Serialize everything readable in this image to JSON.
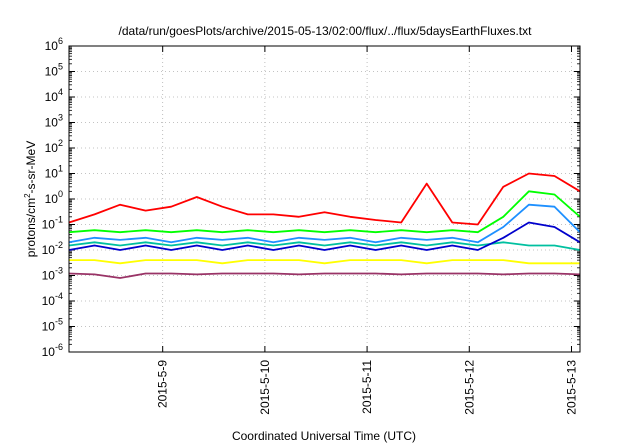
{
  "chart_data": {
    "type": "line",
    "title": "/data/run/goesPlots/archive/2015-05-13/02:00/flux/../flux/5daysEarthFluxes.txt",
    "xlabel": "Coordinated Universal Time (UTC)",
    "ylabel_main": "protons/cm",
    "ylabel_sup": "2",
    "ylabel_tail": "-s-sr-MeV",
    "x_axis": {
      "range": [
        "2015-05-08 02:00",
        "2015-05-13 02:00"
      ],
      "ticks": [
        "2015-5-9",
        "2015-5-10",
        "2015-5-11",
        "2015-5-12",
        "2015-5-13"
      ]
    },
    "y_axis": {
      "scale": "log",
      "range": [
        1e-06,
        1000000.0
      ],
      "ticks": [
        {
          "base": "10",
          "exp": "-6"
        },
        {
          "base": "10",
          "exp": "-5"
        },
        {
          "base": "10",
          "exp": "-4"
        },
        {
          "base": "10",
          "exp": "-3"
        },
        {
          "base": "10",
          "exp": "-2"
        },
        {
          "base": "10",
          "exp": "-1"
        },
        {
          "base": "10",
          "exp": "0"
        },
        {
          "base": "10",
          "exp": "1"
        },
        {
          "base": "10",
          "exp": "2"
        },
        {
          "base": "10",
          "exp": "3"
        },
        {
          "base": "10",
          "exp": "4"
        },
        {
          "base": "10",
          "exp": "5"
        },
        {
          "base": "10",
          "exp": "6"
        }
      ]
    },
    "grid": true,
    "x": [
      "2015-05-08 02:00",
      "2015-05-08 08:00",
      "2015-05-08 14:00",
      "2015-05-08 20:00",
      "2015-05-09 02:00",
      "2015-05-09 08:00",
      "2015-05-09 14:00",
      "2015-05-09 20:00",
      "2015-05-10 02:00",
      "2015-05-10 08:00",
      "2015-05-10 14:00",
      "2015-05-10 20:00",
      "2015-05-11 02:00",
      "2015-05-11 08:00",
      "2015-05-11 14:00",
      "2015-05-11 20:00",
      "2015-05-12 02:00",
      "2015-05-12 08:00",
      "2015-05-12 14:00",
      "2015-05-12 20:00",
      "2015-05-13 02:00"
    ],
    "series": [
      {
        "color": "#ff0000",
        "values": [
          0.12,
          0.25,
          0.6,
          0.35,
          0.5,
          1.2,
          0.5,
          0.25,
          0.25,
          0.2,
          0.3,
          0.2,
          0.15,
          0.12,
          4,
          0.12,
          0.1,
          3,
          10,
          8,
          2
        ]
      },
      {
        "color": "#00ff00",
        "values": [
          0.05,
          0.06,
          0.05,
          0.06,
          0.05,
          0.06,
          0.05,
          0.06,
          0.05,
          0.06,
          0.05,
          0.06,
          0.05,
          0.06,
          0.05,
          0.06,
          0.05,
          0.2,
          2,
          1.5,
          0.2
        ]
      },
      {
        "color": "#1e90ff",
        "values": [
          0.02,
          0.03,
          0.025,
          0.03,
          0.02,
          0.03,
          0.025,
          0.03,
          0.02,
          0.03,
          0.025,
          0.03,
          0.02,
          0.03,
          0.025,
          0.03,
          0.02,
          0.08,
          0.6,
          0.5,
          0.05
        ]
      },
      {
        "color": "#00c0a0",
        "values": [
          0.015,
          0.02,
          0.015,
          0.02,
          0.015,
          0.02,
          0.015,
          0.02,
          0.015,
          0.02,
          0.015,
          0.02,
          0.015,
          0.02,
          0.015,
          0.02,
          0.015,
          0.02,
          0.015,
          0.015,
          0.01
        ]
      },
      {
        "color": "#0000cc",
        "values": [
          0.01,
          0.015,
          0.01,
          0.015,
          0.01,
          0.015,
          0.01,
          0.015,
          0.01,
          0.015,
          0.01,
          0.015,
          0.01,
          0.015,
          0.01,
          0.015,
          0.01,
          0.03,
          0.12,
          0.08,
          0.02
        ]
      },
      {
        "color": "#ffff00",
        "values": [
          0.004,
          0.004,
          0.003,
          0.004,
          0.004,
          0.004,
          0.003,
          0.004,
          0.004,
          0.004,
          0.003,
          0.004,
          0.004,
          0.004,
          0.003,
          0.004,
          0.004,
          0.004,
          0.003,
          0.003,
          0.003
        ]
      },
      {
        "color": "#993366",
        "values": [
          0.0012,
          0.0011,
          0.0008,
          0.0012,
          0.0012,
          0.0011,
          0.0012,
          0.0012,
          0.0012,
          0.0011,
          0.0012,
          0.0012,
          0.0012,
          0.0011,
          0.0012,
          0.0012,
          0.0012,
          0.0011,
          0.0012,
          0.0012,
          0.0011
        ]
      }
    ]
  }
}
